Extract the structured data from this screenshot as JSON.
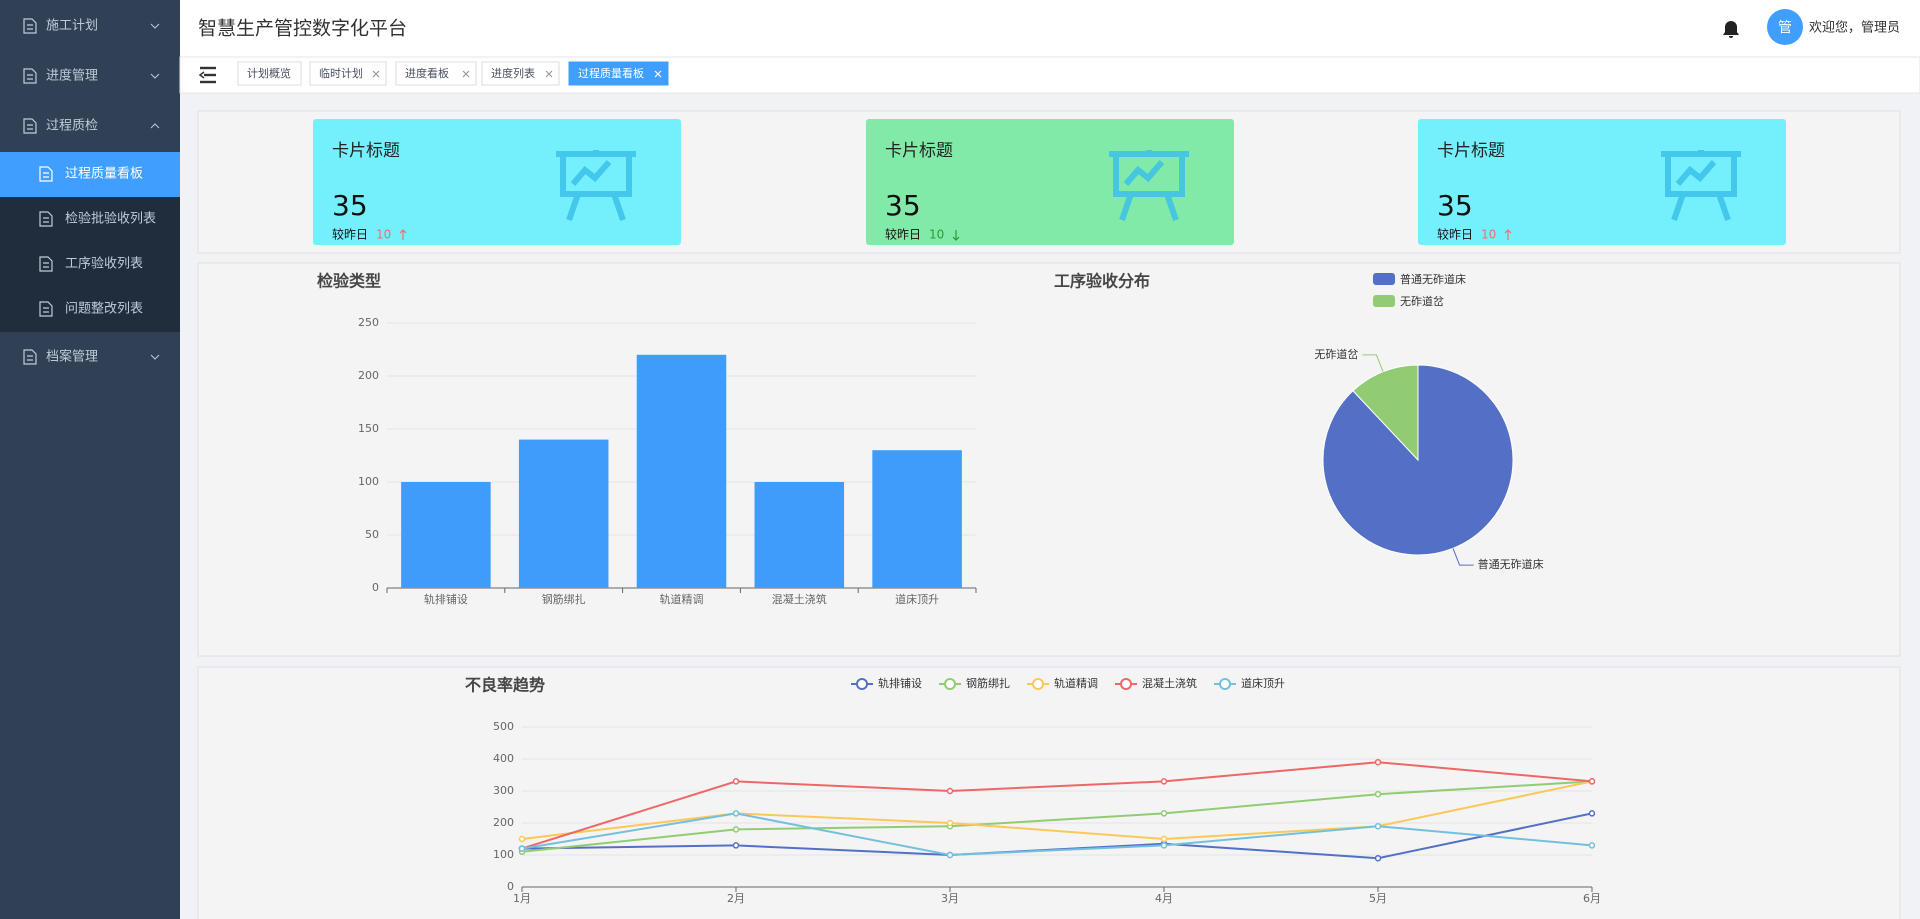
{
  "sidebar": {
    "menu": [
      {
        "label": "施工计划"
      },
      {
        "label": "进度管理"
      },
      {
        "label": "过程质检",
        "children": [
          "过程质量看板",
          "检验批验收列表",
          "工序验收列表",
          "问题整改列表"
        ]
      },
      {
        "label": "档案管理"
      }
    ]
  },
  "header": {
    "title": "智慧生产管控数字化平台",
    "avatar": "管",
    "greeting": "欢迎您，管理员"
  },
  "tabs": [
    "计划概览",
    "临时计划",
    "进度看板",
    "进度列表",
    "过程质量看板"
  ],
  "cards": [
    {
      "title": "卡片标题",
      "value": 35,
      "compare_label": "较昨日",
      "change": 10,
      "trend": "up",
      "color": "#74f0fd"
    },
    {
      "title": "卡片标题",
      "value": 35,
      "compare_label": "较昨日",
      "change": 10,
      "trend": "down",
      "color": "#81eaa9"
    },
    {
      "title": "卡片标题",
      "value": 35,
      "compare_label": "较昨日",
      "change": 10,
      "trend": "up",
      "color": "#74f0fd"
    }
  ],
  "chart_data": [
    {
      "type": "bar",
      "title": "检验类型",
      "categories": [
        "轨排铺设",
        "钢筋绑扎",
        "轨道精调",
        "混凝土浇筑",
        "道床顶升"
      ],
      "values": [
        100,
        140,
        220,
        100,
        130
      ],
      "color": "#3f9cfb",
      "ylim": [
        0,
        250
      ],
      "yticks": [
        0,
        50,
        100,
        150,
        200,
        250
      ],
      "grid": true
    },
    {
      "type": "pie",
      "title": "工序验收分布",
      "categories": [
        "普通无砟道床",
        "无砟道岔"
      ],
      "values": [
        88,
        12
      ],
      "colors": [
        "#5470c6",
        "#91cc75"
      ],
      "legend": "top"
    },
    {
      "type": "line",
      "title": "不良率趋势",
      "categories": [
        "1月",
        "2月",
        "3月",
        "4月",
        "5月",
        "6月"
      ],
      "ylim": [
        0,
        500
      ],
      "yticks": [
        0,
        100,
        200,
        300,
        400,
        500
      ],
      "grid": true,
      "series": [
        {
          "name": "轨排铺设",
          "color": "#5470c6",
          "values": [
            120,
            130,
            100,
            135,
            90,
            230
          ]
        },
        {
          "name": "钢筋绑扎",
          "color": "#91cc75",
          "values": [
            110,
            180,
            190,
            230,
            290,
            330
          ]
        },
        {
          "name": "轨道精调",
          "color": "#fac858",
          "values": [
            150,
            230,
            200,
            150,
            190,
            330
          ]
        },
        {
          "name": "混凝土浇筑",
          "color": "#ee6666",
          "values": [
            120,
            330,
            300,
            330,
            390,
            330
          ]
        },
        {
          "name": "道床顶升",
          "color": "#73c0de",
          "values": [
            120,
            230,
            100,
            130,
            190,
            130
          ]
        }
      ]
    }
  ]
}
